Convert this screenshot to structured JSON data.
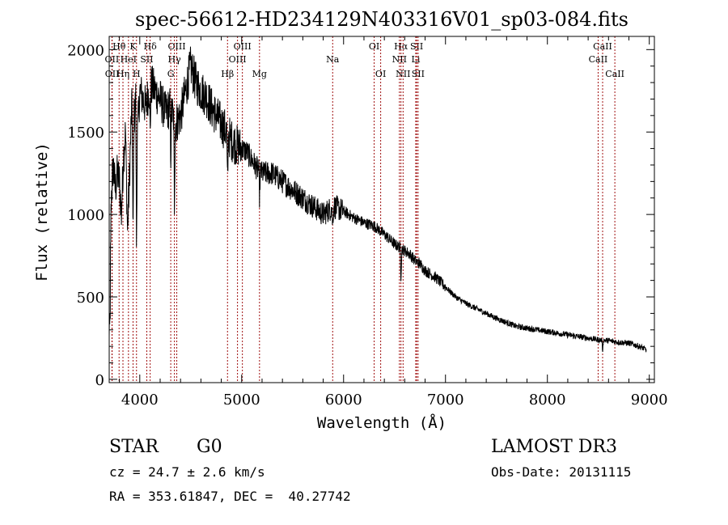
{
  "chart_data": {
    "type": "line",
    "title": "spec-56612-HD234129N403316V01_sp03-084.fits",
    "xlabel": "Wavelength (Å)",
    "ylabel": "Flux (relative)",
    "xlim": [
      3700,
      9050
    ],
    "ylim": [
      -20,
      2080
    ],
    "x_ticks": [
      4000,
      5000,
      6000,
      7000,
      8000,
      9000
    ],
    "y_ticks": [
      0,
      500,
      1000,
      1500,
      2000
    ],
    "series": [
      {
        "name": "flux",
        "x": [
          3700,
          3720,
          3740,
          3760,
          3780,
          3800,
          3820,
          3840,
          3860,
          3880,
          3900,
          3920,
          3940,
          3960,
          3980,
          4000,
          4030,
          4060,
          4100,
          4150,
          4200,
          4250,
          4300,
          4350,
          4400,
          4450,
          4500,
          4550,
          4600,
          4650,
          4700,
          4750,
          4800,
          4850,
          4900,
          4950,
          5000,
          5050,
          5100,
          5150,
          5200,
          5300,
          5400,
          5500,
          5600,
          5700,
          5800,
          5900,
          6000,
          6100,
          6200,
          6300,
          6400,
          6500,
          6550,
          6600,
          6650,
          6700,
          6750,
          6800,
          6900,
          7000,
          7100,
          7200,
          7300,
          7400,
          7500,
          7600,
          7700,
          7800,
          7900,
          8000,
          8100,
          8200,
          8300,
          8400,
          8500,
          8600,
          8700,
          8800,
          8900,
          8970
        ],
        "y": [
          200,
          1100,
          1300,
          1150,
          1250,
          1200,
          1000,
          1350,
          1500,
          900,
          1250,
          1650,
          1550,
          1700,
          1500,
          1750,
          1700,
          1650,
          1800,
          1750,
          1700,
          1620,
          1650,
          1550,
          1600,
          1750,
          1900,
          1800,
          1750,
          1720,
          1650,
          1600,
          1550,
          1500,
          1450,
          1420,
          1400,
          1380,
          1330,
          1280,
          1250,
          1250,
          1200,
          1150,
          1100,
          1050,
          1000,
          1050,
          1020,
          980,
          950,
          930,
          880,
          820,
          800,
          780,
          760,
          720,
          700,
          660,
          620,
          560,
          500,
          460,
          430,
          400,
          370,
          345,
          320,
          310,
          300,
          290,
          280,
          270,
          260,
          250,
          240,
          235,
          225,
          220,
          200,
          180
        ]
      }
    ],
    "line_markers": [
      {
        "label": "Hθ",
        "x": 3797,
        "row": 1
      },
      {
        "label": "OII",
        "x": 3727,
        "row": 2
      },
      {
        "label": "OII",
        "x": 3729,
        "row": 3
      },
      {
        "label": "K",
        "x": 3934,
        "row": 1
      },
      {
        "label": "HeI",
        "x": 3889,
        "row": 2
      },
      {
        "label": "Hη",
        "x": 3835,
        "row": 3
      },
      {
        "label": "SII",
        "x": 4069,
        "row": 2
      },
      {
        "label": "H",
        "x": 3968,
        "row": 3
      },
      {
        "label": "Hδ",
        "x": 4102,
        "row": 1
      },
      {
        "label": "OIII",
        "x": 4363,
        "row": 1
      },
      {
        "label": "Hγ",
        "x": 4340,
        "row": 2
      },
      {
        "label": "G",
        "x": 4304,
        "row": 3
      },
      {
        "label": "OIII",
        "x": 5007,
        "row": 1
      },
      {
        "label": "OIII",
        "x": 4959,
        "row": 2
      },
      {
        "label": "Hβ",
        "x": 4861,
        "row": 3
      },
      {
        "label": "Mg",
        "x": 5175,
        "row": 3
      },
      {
        "label": "Na",
        "x": 5893,
        "row": 2
      },
      {
        "label": "OI",
        "x": 6300,
        "row": 1
      },
      {
        "label": "OI",
        "x": 6364,
        "row": 3
      },
      {
        "label": "Hα",
        "x": 6563,
        "row": 1
      },
      {
        "label": "NII",
        "x": 6548,
        "row": 2
      },
      {
        "label": "NII",
        "x": 6584,
        "row": 3
      },
      {
        "label": "SII",
        "x": 6717,
        "row": 1
      },
      {
        "label": "Li",
        "x": 6708,
        "row": 2
      },
      {
        "label": "SII",
        "x": 6731,
        "row": 3
      },
      {
        "label": "CaII",
        "x": 8542,
        "row": 1
      },
      {
        "label": "CaII",
        "x": 8498,
        "row": 2
      },
      {
        "label": "CaII",
        "x": 8662,
        "row": 3
      }
    ]
  },
  "info": {
    "object_class": "STAR",
    "subclass": "G0",
    "survey": "LAMOST DR3",
    "cz": "cz = 24.7 ± 2.6 km/s",
    "obs_date": "Obs-Date: 20131115",
    "coords": "RA = 353.61847, DEC =  40.27742"
  },
  "colors": {
    "line": "#000000",
    "marker": "#a01010"
  }
}
